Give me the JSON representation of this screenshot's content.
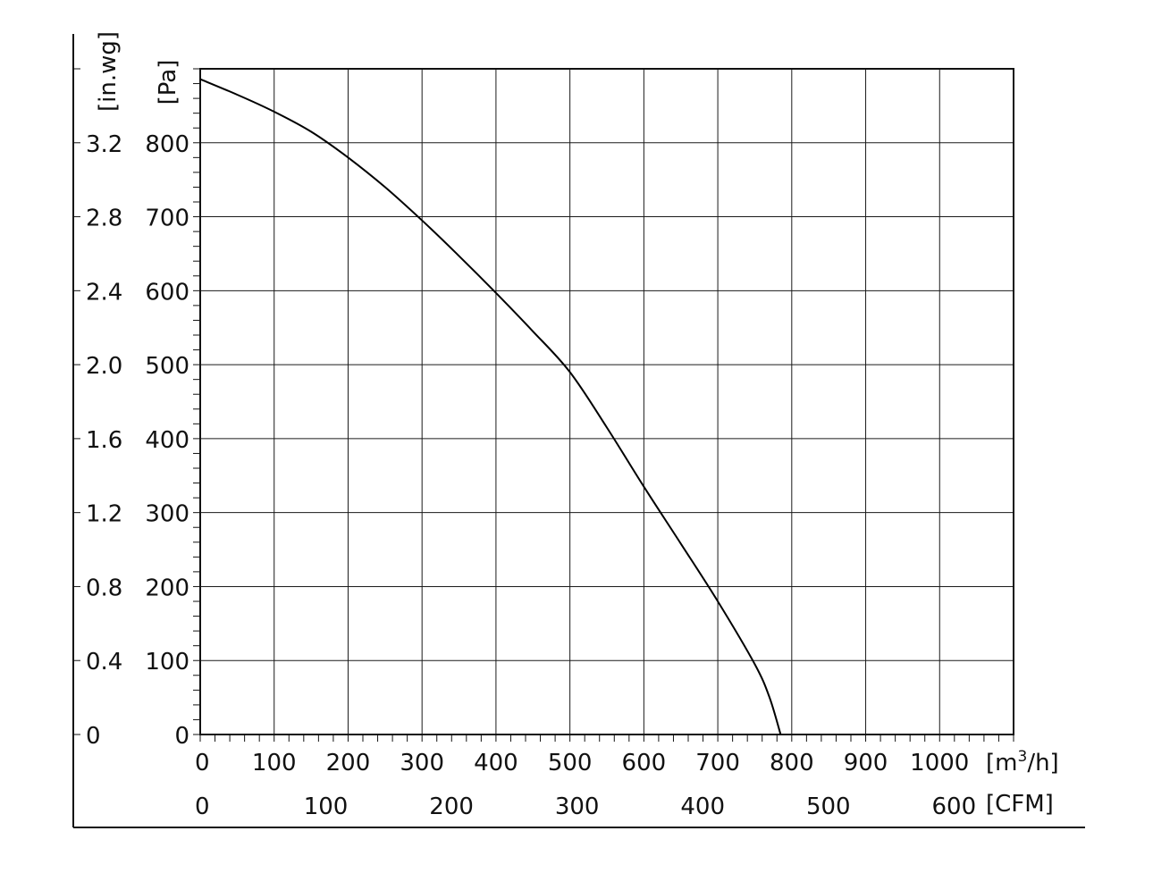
{
  "chart_data": {
    "type": "line",
    "title": "",
    "x_axis": {
      "unit_prefix": "[m",
      "unit_sup": "3",
      "unit_suffix": "/h]",
      "ticks": [
        0,
        100,
        200,
        300,
        400,
        500,
        600,
        700,
        800,
        900,
        1000
      ],
      "xlim": [
        0,
        1100
      ]
    },
    "x_axis_secondary": {
      "unit": "[CFM]",
      "ticks": [
        0,
        100,
        200,
        300,
        400,
        500,
        600
      ]
    },
    "y_axis": {
      "unit": "[Pa]",
      "ticks": [
        0,
        100,
        200,
        300,
        400,
        500,
        600,
        700,
        800
      ],
      "ylim": [
        0,
        900
      ]
    },
    "y_axis_secondary": {
      "unit": "[in.wg]",
      "ticks": [
        "0",
        "0.4",
        "0.8",
        "1.2",
        "1.6",
        "2.0",
        "2.4",
        "2.8",
        "3.2"
      ]
    },
    "grid": true,
    "series": [
      {
        "x": [
          0,
          50,
          100,
          150,
          200,
          250,
          300,
          350,
          400,
          450,
          500,
          550,
          600,
          650,
          700,
          750,
          770,
          785
        ],
        "y": [
          886,
          865,
          842,
          815,
          780,
          740,
          695,
          647,
          597,
          545,
          490,
          415,
          335,
          258,
          180,
          95,
          50,
          0
        ]
      }
    ]
  }
}
